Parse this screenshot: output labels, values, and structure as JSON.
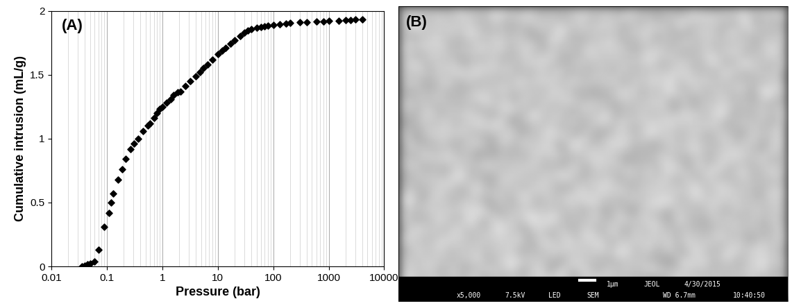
{
  "chart_data": {
    "type": "scatter",
    "panel_label": "(A)",
    "x_label": "Pressure (bar)",
    "y_label": "Cumulative intrusion (mL/g)",
    "log": "x",
    "grid": "x",
    "color": "#000000",
    "marker": "diamond",
    "x": [
      0.035,
      0.04,
      0.045,
      0.05,
      0.06,
      0.07,
      0.09,
      0.11,
      0.12,
      0.13,
      0.16,
      0.19,
      0.22,
      0.27,
      0.31,
      0.37,
      0.45,
      0.55,
      0.6,
      0.7,
      0.8,
      0.9,
      1.0,
      1.2,
      1.4,
      1.6,
      1.9,
      2.1,
      2.6,
      3.2,
      4,
      4.8,
      5.5,
      6.5,
      8,
      10,
      12,
      14,
      17,
      20,
      25,
      30,
      35,
      40,
      50,
      60,
      70,
      80,
      100,
      130,
      170,
      200,
      300,
      400,
      600,
      800,
      1000,
      1500,
      2000,
      2500,
      3000,
      4000
    ],
    "values": [
      0,
      0.005,
      0.015,
      0.02,
      0.04,
      0.13,
      0.31,
      0.42,
      0.5,
      0.57,
      0.68,
      0.76,
      0.84,
      0.92,
      0.96,
      1.0,
      1.06,
      1.1,
      1.12,
      1.16,
      1.2,
      1.23,
      1.25,
      1.28,
      1.31,
      1.34,
      1.36,
      1.37,
      1.41,
      1.45,
      1.49,
      1.52,
      1.55,
      1.58,
      1.62,
      1.66,
      1.69,
      1.71,
      1.74,
      1.77,
      1.8,
      1.83,
      1.845,
      1.855,
      1.865,
      1.875,
      1.88,
      1.885,
      1.89,
      1.895,
      1.9,
      1.905,
      1.91,
      1.912,
      1.915,
      1.918,
      1.92,
      1.922,
      1.925,
      1.928,
      1.93,
      1.93
    ],
    "xlim": [
      0.01,
      10000
    ],
    "xticks": [
      0.01,
      0.1,
      1,
      10,
      100,
      1000,
      10000
    ],
    "ylim": [
      0,
      2
    ],
    "yticks": [
      0,
      0.5,
      1,
      1.5,
      2
    ]
  },
  "image_panel": {
    "panel_label": "(B)",
    "info_bar_top": [
      "1µm",
      "JEOL",
      "4/30/2015"
    ],
    "info_bar_bottom": [
      "x5,000",
      "7.5kV",
      "LED",
      "SEM",
      "WD 6.7mm",
      "10:40:50"
    ]
  }
}
